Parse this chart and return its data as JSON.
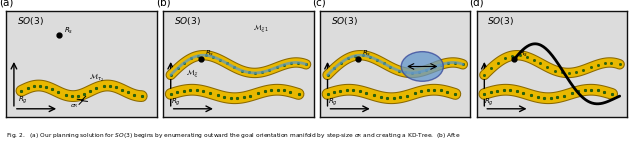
{
  "panels": [
    "(a)",
    "(b)",
    "(c)",
    "(d)"
  ],
  "so3_label": "SO(3)",
  "bg_color": "#e8e8e8",
  "panel_bg": "#dcdcdc",
  "border_color": "#111111",
  "yellow_color": "#e8b800",
  "yellow_dark": "#b58a00",
  "green_dot_color": "#1a6e1a",
  "blue_path_color": "#5599cc",
  "blue_ellipse": "#5599ee",
  "black_path_color": "#000000",
  "text_color": "#000000",
  "fig_width": 6.4,
  "fig_height": 1.43,
  "caption": "Fig. 2.   (a) Our planning solution for SO(3) begins by enumerating outward the goal orientation manifold by step-size σ_R and creating a KD-Tree.  (b) Afte"
}
